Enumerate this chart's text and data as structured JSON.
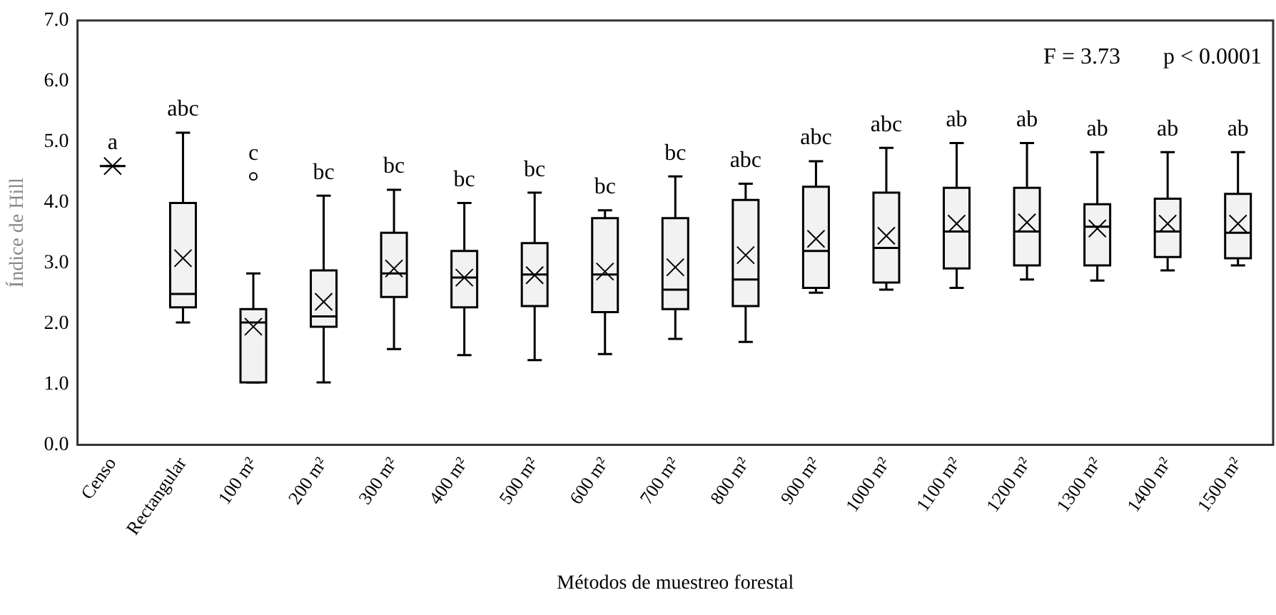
{
  "chart_data": {
    "type": "box",
    "xlabel": "Métodos de muestreo forestal",
    "ylabel": "Índice de Hill",
    "categories": [
      "Censo",
      "Rectangular",
      "100 m²",
      "200 m²",
      "300 m²",
      "400 m²",
      "500 m²",
      "600 m²",
      "700 m²",
      "800 m²",
      "900 m²",
      "1000 m²",
      "1100 m²",
      "1200 m²",
      "1300 m²",
      "1400 m²",
      "1500 m²"
    ],
    "colors": [
      "#000000",
      "#f2f2f2",
      "#f2f2f2",
      "#f2f2f2",
      "#f2f2f2",
      "#f2f2f2",
      "#f2f2f2",
      "#f2f2f2",
      "#f2f2f2",
      "#f2f2f2",
      "#f2f2f2",
      "#f2f2f2",
      "#f2f2f2",
      "#f2f2f2",
      "#f2f2f2",
      "#f2f2f2",
      "#f2f2f2"
    ],
    "boxes": [
      {
        "low": 4.6,
        "q1": 4.6,
        "median": 4.6,
        "q3": 4.6,
        "high": 4.6,
        "mean": 4.6
      },
      {
        "low": 2.02,
        "q1": 2.27,
        "median": 2.49,
        "q3": 3.99,
        "high": 5.15,
        "mean": 3.08
      },
      {
        "low": 1.03,
        "q1": 1.03,
        "median": 2.02,
        "q3": 2.24,
        "high": 2.83,
        "mean": 1.95,
        "outliers": [
          4.43
        ]
      },
      {
        "low": 1.03,
        "q1": 1.95,
        "median": 2.12,
        "q3": 2.88,
        "high": 4.11,
        "mean": 2.36
      },
      {
        "low": 1.58,
        "q1": 2.44,
        "median": 2.83,
        "q3": 3.5,
        "high": 4.21,
        "mean": 2.91
      },
      {
        "low": 1.48,
        "q1": 2.27,
        "median": 2.76,
        "q3": 3.2,
        "high": 3.99,
        "mean": 2.76
      },
      {
        "low": 1.4,
        "q1": 2.29,
        "median": 2.81,
        "q3": 3.33,
        "high": 4.16,
        "mean": 2.8
      },
      {
        "low": 1.5,
        "q1": 2.19,
        "median": 2.81,
        "q3": 3.74,
        "high": 3.87,
        "mean": 2.86
      },
      {
        "low": 1.75,
        "q1": 2.24,
        "median": 2.56,
        "q3": 3.74,
        "high": 4.43,
        "mean": 2.93
      },
      {
        "low": 1.7,
        "q1": 2.29,
        "median": 2.73,
        "q3": 4.04,
        "high": 4.31,
        "mean": 3.13
      },
      {
        "low": 2.51,
        "q1": 2.59,
        "median": 3.2,
        "q3": 4.26,
        "high": 4.68,
        "mean": 3.4
      },
      {
        "low": 2.56,
        "q1": 2.68,
        "median": 3.25,
        "q3": 4.16,
        "high": 4.9,
        "mean": 3.45
      },
      {
        "low": 2.59,
        "q1": 2.91,
        "median": 3.52,
        "q3": 4.24,
        "high": 4.98,
        "mean": 3.65
      },
      {
        "low": 2.73,
        "q1": 2.96,
        "median": 3.52,
        "q3": 4.24,
        "high": 4.98,
        "mean": 3.67
      },
      {
        "low": 2.71,
        "q1": 2.96,
        "median": 3.6,
        "q3": 3.97,
        "high": 4.83,
        "mean": 3.57
      },
      {
        "low": 2.88,
        "q1": 3.1,
        "median": 3.52,
        "q3": 4.06,
        "high": 4.83,
        "mean": 3.65
      },
      {
        "low": 2.96,
        "q1": 3.08,
        "median": 3.5,
        "q3": 4.14,
        "high": 4.83,
        "mean": 3.65
      }
    ],
    "ylim": [
      0,
      7
    ],
    "yticks": [
      {
        "value": 0,
        "label": "0.0"
      },
      {
        "value": 1,
        "label": "1.0"
      },
      {
        "value": 2,
        "label": "2.0"
      },
      {
        "value": 3,
        "label": "3.0"
      },
      {
        "value": 4,
        "label": "4.0"
      },
      {
        "value": 5,
        "label": "5.0"
      },
      {
        "value": 6,
        "label": "6.0"
      },
      {
        "value": 7,
        "label": "7.0"
      }
    ],
    "grid": false,
    "legend": false,
    "annotations": [
      "a",
      "abc",
      "c",
      "bc",
      "bc",
      "bc",
      "bc",
      "bc",
      "bc",
      "abc",
      "abc",
      "abc",
      "ab",
      "ab",
      "ab",
      "ab",
      "ab",
      "F = 3.73",
      "p < 0.0001"
    ]
  }
}
